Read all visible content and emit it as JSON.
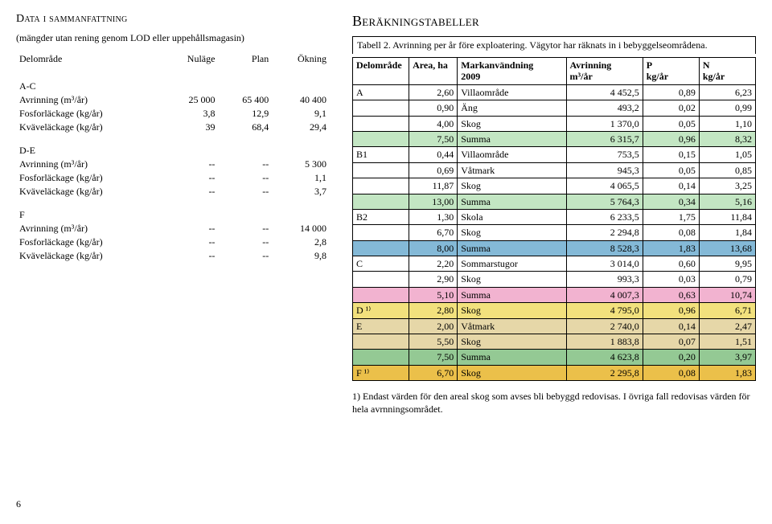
{
  "left": {
    "title": "Data i sammanfattning",
    "subnote": "(mängder utan rening genom LOD eller uppehållsmagasin)",
    "header": {
      "c0": "Delområde",
      "c1": "Nuläge",
      "c2": "Plan",
      "c3": "Ökning"
    },
    "groups": [
      {
        "label": "A-C",
        "rows": [
          {
            "param": "Avrinning (m³/år)",
            "c1": "25 000",
            "c2": "65 400",
            "c3": "40 400"
          },
          {
            "param": "Fosforläckage (kg/år)",
            "c1": "3,8",
            "c2": "12,9",
            "c3": "9,1"
          },
          {
            "param": "Kväveläckage (kg/år)",
            "c1": "39",
            "c2": "68,4",
            "c3": "29,4"
          }
        ]
      },
      {
        "label": "D-E",
        "rows": [
          {
            "param": "Avrinning (m³/år)",
            "c1": "--",
            "c2": "--",
            "c3": "5 300"
          },
          {
            "param": "Fosforläckage (kg/år)",
            "c1": "--",
            "c2": "--",
            "c3": "1,1"
          },
          {
            "param": "Kväveläckage (kg/år)",
            "c1": "--",
            "c2": "--",
            "c3": "3,7"
          }
        ]
      },
      {
        "label": "F",
        "rows": [
          {
            "param": "Avrinning (m³/år)",
            "c1": "--",
            "c2": "--",
            "c3": "14 000"
          },
          {
            "param": "Fosforläckage (kg/år)",
            "c1": "--",
            "c2": "--",
            "c3": "2,8"
          },
          {
            "param": "Kväveläckage (kg/år)",
            "c1": "--",
            "c2": "--",
            "c3": "9,8"
          }
        ]
      }
    ]
  },
  "right": {
    "title": "Beräkningstabeller",
    "caption": "Tabell 2. Avrinning per år före exploatering. Vägytor har räknats in i bebyggelseområdena.",
    "header": {
      "c0": "Delområde",
      "c1": "Area, ha",
      "c2a": "Markanvändning",
      "c2b": "2009",
      "c3a": "Avrinning",
      "c3b": "m³/år",
      "c4a": "P",
      "c4b": "kg/år",
      "c5a": "N",
      "c5b": "kg/år"
    },
    "rows": [
      {
        "bg": "#ffffff",
        "c0": "A",
        "c1": "2,60",
        "c2": "Villaområde",
        "c3": "4 452,5",
        "c4": "0,89",
        "c5": "6,23"
      },
      {
        "bg": "#ffffff",
        "c0": "",
        "c1": "0,90",
        "c2": "Äng",
        "c3": "493,2",
        "c4": "0,02",
        "c5": "0,99"
      },
      {
        "bg": "#ffffff",
        "c0": "",
        "c1": "4,00",
        "c2": "Skog",
        "c3": "1 370,0",
        "c4": "0,05",
        "c5": "1,10"
      },
      {
        "bg": "#c3e6c3",
        "c0": "",
        "c1": "7,50",
        "c2": "Summa",
        "c3": "6 315,7",
        "c4": "0,96",
        "c5": "8,32"
      },
      {
        "bg": "#ffffff",
        "c0": "B1",
        "c1": "0,44",
        "c2": "Villaområde",
        "c3": "753,5",
        "c4": "0,15",
        "c5": "1,05"
      },
      {
        "bg": "#ffffff",
        "c0": "",
        "c1": "0,69",
        "c2": "Våtmark",
        "c3": "945,3",
        "c4": "0,05",
        "c5": "0,85"
      },
      {
        "bg": "#ffffff",
        "c0": "",
        "c1": "11,87",
        "c2": "Skog",
        "c3": "4 065,5",
        "c4": "0,14",
        "c5": "3,25"
      },
      {
        "bg": "#c3e6c3",
        "c0": "",
        "c1": "13,00",
        "c2": "Summa",
        "c3": "5 764,3",
        "c4": "0,34",
        "c5": "5,16"
      },
      {
        "bg": "#ffffff",
        "c0": "B2",
        "c1": "1,30",
        "c2": "Skola",
        "c3": "6 233,5",
        "c4": "1,75",
        "c5": "11,84"
      },
      {
        "bg": "#ffffff",
        "c0": "",
        "c1": "6,70",
        "c2": "Skog",
        "c3": "2 294,8",
        "c4": "0,08",
        "c5": "1,84"
      },
      {
        "bg": "#84b9d7",
        "c0": "",
        "c1": "8,00",
        "c2": "Summa",
        "c3": "8 528,3",
        "c4": "1,83",
        "c5": "13,68"
      },
      {
        "bg": "#ffffff",
        "c0": "C",
        "c1": "2,20",
        "c2": "Sommarstugor",
        "c3": "3 014,0",
        "c4": "0,60",
        "c5": "9,95"
      },
      {
        "bg": "#ffffff",
        "c0": "",
        "c1": "2,90",
        "c2": "Skog",
        "c3": "993,3",
        "c4": "0,03",
        "c5": "0,79"
      },
      {
        "bg": "#f2b3d0",
        "c0": "",
        "c1": "5,10",
        "c2": "Summa",
        "c3": "4 007,3",
        "c4": "0,63",
        "c5": "10,74"
      },
      {
        "bg": "#f2e17d",
        "c0": "D ¹⁾",
        "c1": "2,80",
        "c2": "Skog",
        "c3": "4 795,0",
        "c4": "0,96",
        "c5": "6,71"
      },
      {
        "bg": "#e6d7a8",
        "c0": "E",
        "c1": "2,00",
        "c2": "Våtmark",
        "c3": "2 740,0",
        "c4": "0,14",
        "c5": "2,47"
      },
      {
        "bg": "#e6d7a8",
        "c0": "",
        "c1": "5,50",
        "c2": "Skog",
        "c3": "1 883,8",
        "c4": "0,07",
        "c5": "1,51"
      },
      {
        "bg": "#94c994",
        "c0": "",
        "c1": "7,50",
        "c2": "Summa",
        "c3": "4 623,8",
        "c4": "0,20",
        "c5": "3,97"
      },
      {
        "bg": "#ebc04a",
        "c0": "F ¹⁾",
        "c1": "6,70",
        "c2": "Skog",
        "c3": "2 295,8",
        "c4": "0,08",
        "c5": "1,83"
      }
    ],
    "footnote": "1) Endast värden för den areal skog som avses bli bebyggd redovisas. I övriga fall redovisas värden för hela avrnningsområdet."
  },
  "pageNumber": "6",
  "colWidths": {
    "c0": "14%",
    "c1": "12%",
    "c2": "27%",
    "c3": "19%",
    "c4": "14%",
    "c5": "14%"
  }
}
